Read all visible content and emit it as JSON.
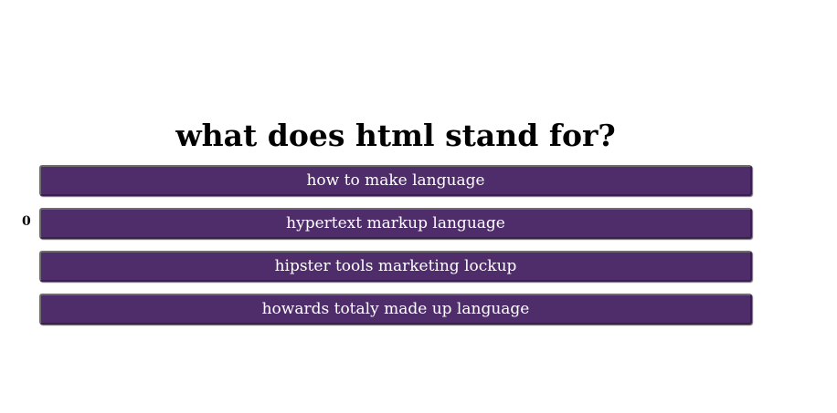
{
  "quiz": {
    "question": "what does html stand for?",
    "score": "0",
    "answers": [
      "how to make language",
      "hypertext markup language",
      "hipster tools marketing lockup",
      "howards totaly made up language"
    ]
  },
  "colors": {
    "button_bg": "#4f2d6b",
    "button_text": "#ffffff",
    "text": "#000000"
  }
}
